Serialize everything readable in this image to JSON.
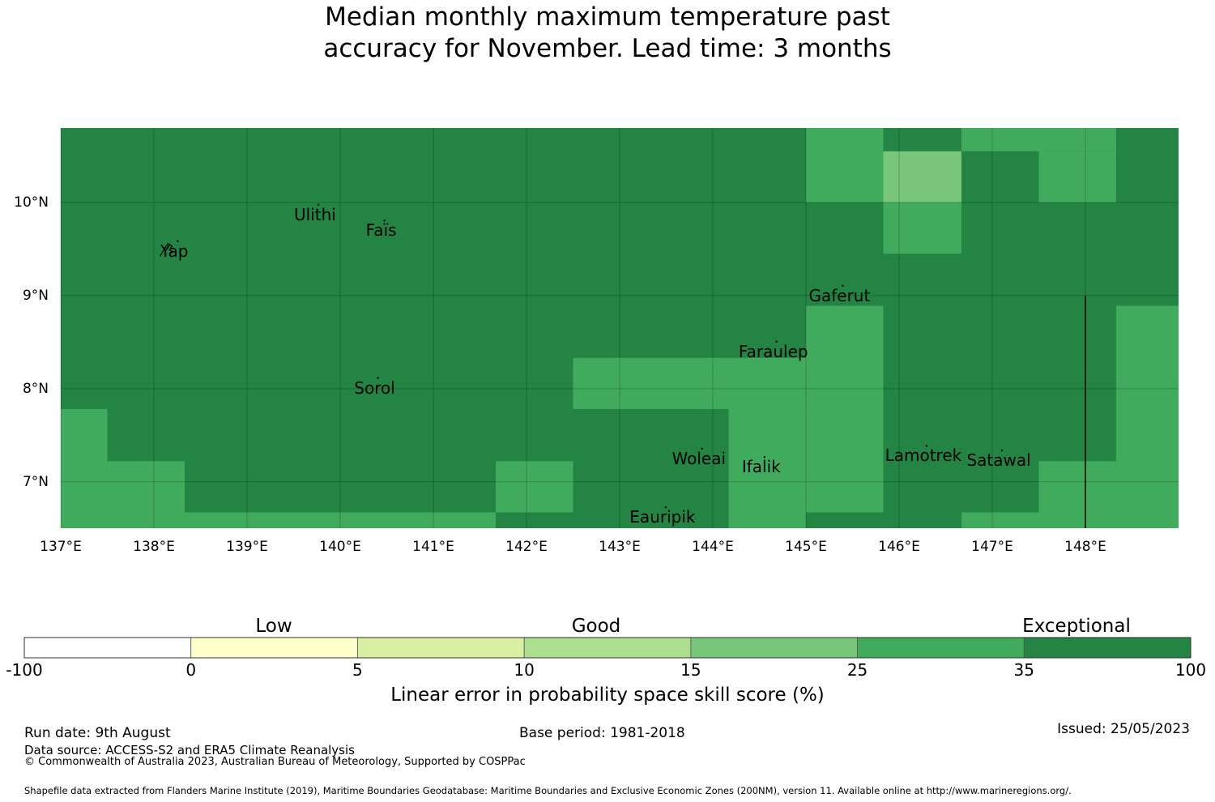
{
  "title_lines": [
    "Median monthly maximum temperature past",
    "accuracy for November. Lead time: 3 months"
  ],
  "chart_data": {
    "type": "heatmap",
    "x_ticks": [
      "137°E",
      "138°E",
      "139°E",
      "140°E",
      "141°E",
      "142°E",
      "143°E",
      "144°E",
      "145°E",
      "146°E",
      "147°E",
      "148°E"
    ],
    "y_ticks": [
      "10°N",
      "9°N",
      "8°N",
      "7°N"
    ],
    "xlim": [
      137,
      149
    ],
    "ylim": [
      6.5,
      10.8
    ],
    "grid": true,
    "colors": {
      "c0": "#ffffff",
      "c1": "#ffffcc",
      "c2": "#d9f0a3",
      "c3": "#addd8e",
      "c4": "#78c679",
      "c5": "#41ab5d",
      "c6": "#238443"
    },
    "cells": [
      {
        "lon": [
          137.0,
          149.0
        ],
        "lat": [
          6.5,
          10.8
        ],
        "cat": "c6"
      },
      {
        "lon": [
          145.0,
          145.83
        ],
        "lat": [
          10.0,
          10.8
        ],
        "cat": "c5"
      },
      {
        "lon": [
          145.83,
          146.67
        ],
        "lat": [
          10.0,
          10.55
        ],
        "cat": "c4"
      },
      {
        "lon": [
          145.83,
          146.67
        ],
        "lat": [
          9.45,
          10.0
        ],
        "cat": "c5"
      },
      {
        "lon": [
          146.67,
          148.33
        ],
        "lat": [
          10.55,
          10.8
        ],
        "cat": "c5"
      },
      {
        "lon": [
          147.5,
          148.33
        ],
        "lat": [
          10.0,
          10.55
        ],
        "cat": "c5"
      },
      {
        "lon": [
          145.0,
          145.83
        ],
        "lat": [
          6.67,
          8.89
        ],
        "cat": "c5"
      },
      {
        "lon": [
          142.5,
          145.0
        ],
        "lat": [
          7.78,
          8.33
        ],
        "cat": "c5"
      },
      {
        "lon": [
          144.17,
          145.0
        ],
        "lat": [
          6.5,
          7.78
        ],
        "cat": "c5"
      },
      {
        "lon": [
          148.33,
          149.0
        ],
        "lat": [
          6.5,
          8.89
        ],
        "cat": "c5"
      },
      {
        "lon": [
          147.5,
          148.33
        ],
        "lat": [
          6.5,
          7.22
        ],
        "cat": "c5"
      },
      {
        "lon": [
          146.67,
          147.5
        ],
        "lat": [
          6.5,
          6.67
        ],
        "cat": "c5"
      },
      {
        "lon": [
          137.0,
          137.5
        ],
        "lat": [
          6.5,
          7.78
        ],
        "cat": "c5"
      },
      {
        "lon": [
          137.5,
          138.33
        ],
        "lat": [
          6.5,
          7.22
        ],
        "cat": "c5"
      },
      {
        "lon": [
          138.33,
          141.67
        ],
        "lat": [
          6.5,
          6.67
        ],
        "cat": "c5"
      },
      {
        "lon": [
          141.67,
          142.5
        ],
        "lat": [
          6.67,
          7.22
        ],
        "cat": "c5"
      }
    ],
    "boundary_line": {
      "lon": 148.0,
      "lat": [
        6.5,
        9.0
      ]
    }
  },
  "places": [
    {
      "name": "Ulithi",
      "lon": 139.73,
      "lat": 9.87
    },
    {
      "name": "Faïs",
      "lon": 140.44,
      "lat": 9.7
    },
    {
      "name": "Yap",
      "lon": 138.22,
      "lat": 9.48
    },
    {
      "name": "Gaferut",
      "lon": 145.36,
      "lat": 9.0
    },
    {
      "name": "Faraulep",
      "lon": 144.65,
      "lat": 8.4
    },
    {
      "name": "Sorol",
      "lon": 140.37,
      "lat": 8.01
    },
    {
      "name": "Woleai",
      "lon": 143.85,
      "lat": 7.25
    },
    {
      "name": "Ifalik",
      "lon": 144.52,
      "lat": 7.16
    },
    {
      "name": "Lamotrek",
      "lon": 146.26,
      "lat": 7.28
    },
    {
      "name": "Satawal",
      "lon": 147.07,
      "lat": 7.23
    },
    {
      "name": "Eauripik",
      "lon": 143.46,
      "lat": 6.62
    }
  ],
  "colorbar": {
    "categories": [
      "Low",
      "Good",
      "Exceptional"
    ],
    "ticks": [
      "-100",
      "0",
      "5",
      "10",
      "15",
      "25",
      "35",
      "100"
    ],
    "label": "Linear error in probability space skill score (%)"
  },
  "footer": {
    "run_date": "Run date: 9th August",
    "base_period": "Base period: 1981-2018",
    "issued": "Issued: 25/05/2023",
    "data_source": "Data source: ACCESS-S2 and ERA5 Climate Reanalysis",
    "copyright": "© Commonwealth of Australia 2023, Australian Bureau of Meteorology, Supported by COSPPac",
    "shapefile": "Shapefile data extracted from Flanders Marine Institute (2019), Maritime Boundaries Geodatabase: Maritime Boundaries and Exclusive Economic Zones (200NM), version 11. Available online at http://www.marineregions.org/."
  }
}
